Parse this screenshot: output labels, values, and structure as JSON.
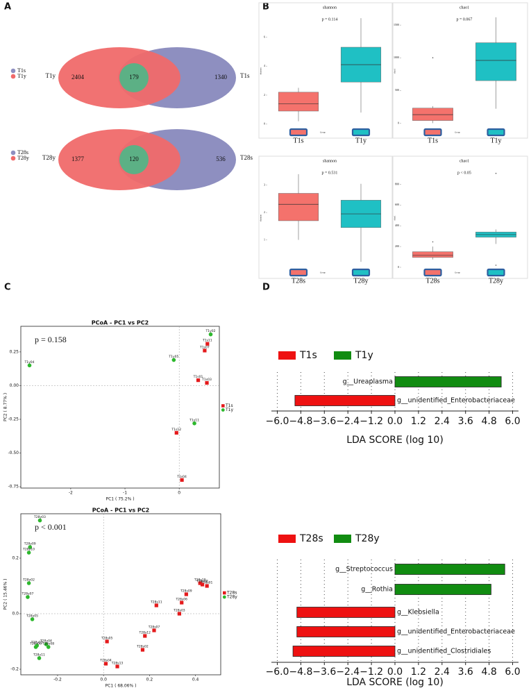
{
  "panel_labels": [
    "A",
    "B",
    "C",
    "D"
  ],
  "chart_data": [
    {
      "type": "venn",
      "sets": [
        {
          "name": "T1y",
          "color": "#f06a6a",
          "value": 2404
        },
        {
          "name": "T1s",
          "color": "#8e8fc0",
          "value": 1340
        }
      ],
      "intersection": 179,
      "intersection_color": "#5cb085"
    },
    {
      "type": "venn",
      "sets": [
        {
          "name": "T28y",
          "color": "#f06a6a",
          "value": 1377
        },
        {
          "name": "T28s",
          "color": "#8e8fc0",
          "value": 536
        }
      ],
      "intersection": 120,
      "intersection_color": "#5cb085"
    },
    {
      "type": "box",
      "title": "shannon",
      "annotation": "p = 0.114",
      "ylabel": "shannon",
      "xlabel": "Group",
      "categories": [
        "T1s",
        "T1y"
      ],
      "colors": [
        "#f4726c",
        "#1fc0c4"
      ],
      "boxes": [
        {
          "min": 0.2,
          "q1": 0.9,
          "median": 1.4,
          "q3": 2.2,
          "max": 2.5,
          "outliers": []
        },
        {
          "min": 0.8,
          "q1": 2.9,
          "median": 4.1,
          "q3": 5.3,
          "max": 7.3,
          "outliers": []
        }
      ],
      "ylim": [
        -0.2,
        7.5
      ],
      "yticks": [
        0,
        2,
        4,
        6
      ]
    },
    {
      "type": "box",
      "title": "chao1",
      "annotation": "p = 0.067",
      "ylabel": "chao1",
      "xlabel": "Group",
      "categories": [
        "T1s",
        "T1y"
      ],
      "colors": [
        "#f4726c",
        "#1fc0c4"
      ],
      "boxes": [
        {
          "min": 0,
          "q1": 40,
          "median": 130,
          "q3": 230,
          "max": 260,
          "outliers": [
            1000
          ]
        },
        {
          "min": 220,
          "q1": 650,
          "median": 960,
          "q3": 1230,
          "max": 1620,
          "outliers": []
        }
      ],
      "ylim": [
        -60,
        1650
      ],
      "yticks": [
        0,
        500,
        1000,
        1500
      ]
    },
    {
      "type": "box",
      "title": "shannon",
      "annotation": "p = 0.531",
      "ylabel": "shannon",
      "xlabel": "Group",
      "categories": [
        "T28s",
        "T28y"
      ],
      "colors": [
        "#f4726c",
        "#1fc0c4"
      ],
      "boxes": [
        {
          "min": 1.0,
          "q1": 1.7,
          "median": 2.3,
          "q3": 2.7,
          "max": 3.4,
          "outliers": []
        },
        {
          "min": 0.2,
          "q1": 1.45,
          "median": 1.95,
          "q3": 2.45,
          "max": 3.05,
          "outliers": []
        }
      ],
      "ylim": [
        0,
        3.6
      ],
      "yticks": [
        1,
        2,
        3
      ]
    },
    {
      "type": "box",
      "title": "chao1",
      "annotation": "p < 0.05",
      "ylabel": "chao1",
      "xlabel": "Group",
      "categories": [
        "T28s",
        "T28y"
      ],
      "colors": [
        "#f4726c",
        "#1fc0c4"
      ],
      "boxes": [
        {
          "min": 75,
          "q1": 95,
          "median": 115,
          "q3": 150,
          "max": 200,
          "outliers": [
            245
          ]
        },
        {
          "min": 225,
          "q1": 290,
          "median": 315,
          "q3": 340,
          "max": 365,
          "outliers": [
            905,
            20
          ]
        }
      ],
      "ylim": [
        0,
        950
      ],
      "yticks": [
        0,
        200,
        400,
        600,
        800
      ]
    },
    {
      "type": "scatter",
      "title": "PCoA - PC1 vs PC2",
      "annotation": "p = 0.158",
      "xlabel": "PC1 ( 75.2% )",
      "ylabel": "PC2 ( 8.77% )",
      "series": [
        {
          "name": "T1s",
          "color": "#e41a1c",
          "marker": "square",
          "labels": [
            "T1s11",
            "T1s07",
            "T1s01",
            "T1s03",
            "T1s12",
            "T1s04"
          ],
          "x": [
            0.52,
            0.47,
            0.35,
            0.51,
            -0.05,
            0.05
          ],
          "values": [
            0.31,
            0.26,
            0.04,
            0.02,
            -0.35,
            -0.7
          ]
        },
        {
          "name": "T1y",
          "color": "#2db82d",
          "marker": "circle",
          "labels": [
            "T1y02",
            "T1y05",
            "T1y04",
            "T1y11"
          ],
          "x": [
            0.58,
            -0.1,
            -2.76,
            0.28
          ],
          "values": [
            0.38,
            0.19,
            0.15,
            -0.28
          ]
        }
      ],
      "xlim": [
        -2.92,
        0.74
      ],
      "ylim": [
        -0.76,
        0.44
      ],
      "xticks": [
        -2,
        -1,
        0
      ],
      "yticks": [
        0.25,
        {
          "value": 0,
          "label": "0.00"
        },
        -0.25,
        {
          "value": -0.5,
          "label": "-0.50"
        },
        -0.75
      ]
    },
    {
      "type": "scatter",
      "title": "PCoA - PC1 vs PC2",
      "annotation": "p  <  0.001",
      "xlabel": "PC1 ( 68.06% )",
      "ylabel": "PC2 ( 15.46% )",
      "series": [
        {
          "name": "T28s",
          "color": "#e41a1c",
          "marker": "square",
          "labels": [
            "T28s10",
            "T28s01",
            "T28s08",
            "T28s09",
            "T28s06",
            "T28s11",
            "T28s03",
            "T28s07",
            "T28s12",
            "T28s02",
            "T28s05",
            "T28s04",
            "T28s13"
          ],
          "x": [
            0.42,
            0.45,
            0.43,
            0.36,
            0.34,
            0.23,
            0.33,
            0.22,
            0.18,
            0.17,
            0.015,
            0.01,
            0.06
          ],
          "values": [
            0.11,
            0.1,
            0.105,
            0.07,
            0.04,
            0.03,
            0.0,
            -0.06,
            -0.08,
            -0.13,
            -0.1,
            -0.18,
            -0.19
          ]
        },
        {
          "name": "T28y",
          "color": "#2db82d",
          "marker": "circle",
          "labels": [
            "T28y03",
            "T28y09",
            "T28y10",
            "T28y02",
            "T28y07",
            "T28y05",
            "T28y04",
            "T28y06",
            "T28y08",
            "T28y01",
            "T28y11"
          ],
          "x": [
            -0.277,
            -0.32,
            -0.325,
            -0.325,
            -0.33,
            -0.31,
            -0.25,
            -0.295,
            -0.24,
            -0.29,
            -0.28
          ],
          "values": [
            0.336,
            0.24,
            0.22,
            0.11,
            0.06,
            -0.02,
            -0.11,
            -0.12,
            -0.12,
            -0.115,
            -0.16
          ]
        }
      ],
      "xlim": [
        -0.36,
        0.51
      ],
      "ylim": [
        -0.22,
        0.36
      ],
      "xticks": [
        -0.2,
        {
          "value": 0,
          "label": "0.0"
        },
        0.2,
        0.4
      ],
      "yticks": [
        0.2,
        {
          "value": 0,
          "label": "0.0"
        },
        -0.2
      ]
    },
    {
      "type": "lda",
      "xlabel": "LDA SCORE (log 10)",
      "series": [
        {
          "name": "T1s",
          "color": "#ee1111"
        },
        {
          "name": "T1y",
          "color": "#118c11"
        }
      ],
      "categories": [
        "g__Ureaplasma",
        "g__unidentified_Enterobacteriaceae"
      ],
      "values": [
        5.42,
        -5.1
      ],
      "xlim": [
        -6.3,
        6.3
      ],
      "xticks": [
        {
          "value": -6,
          "label": "−6.0"
        },
        {
          "value": -4.8,
          "label": "−4.8"
        },
        {
          "value": -3.6,
          "label": "−3.6"
        },
        {
          "value": -2.4,
          "label": "−2.4"
        },
        {
          "value": -1.2,
          "label": "−1.2"
        },
        {
          "value": 0,
          "label": "0.0"
        },
        1.2,
        2.4,
        3.6,
        4.8,
        {
          "value": 6,
          "label": "6.0"
        }
      ]
    },
    {
      "type": "lda",
      "xlabel": "LDA SCORE (log 10)",
      "series": [
        {
          "name": "T28s",
          "color": "#ee1111"
        },
        {
          "name": "T28y",
          "color": "#118c11"
        }
      ],
      "categories": [
        "g__Streptococcus",
        "g__Rothia",
        "g__Klebsiella",
        "g__unidentified_Enterobacteriaceae",
        "g__unidentified_Clostridiales"
      ],
      "values": [
        5.6,
        4.9,
        -5.0,
        -5.0,
        -5.2
      ],
      "xlim": [
        -6.3,
        6.3
      ],
      "xticks": [
        {
          "value": -6,
          "label": "−6.0"
        },
        {
          "value": -4.8,
          "label": "−4.8"
        },
        {
          "value": -3.6,
          "label": "−3.6"
        },
        {
          "value": -2.4,
          "label": "−2.4"
        },
        {
          "value": -1.2,
          "label": "−1.2"
        },
        {
          "value": 0,
          "label": "0.0"
        },
        1.2,
        2.4,
        3.6,
        4.8,
        {
          "value": 6,
          "label": "6.0"
        }
      ]
    }
  ]
}
